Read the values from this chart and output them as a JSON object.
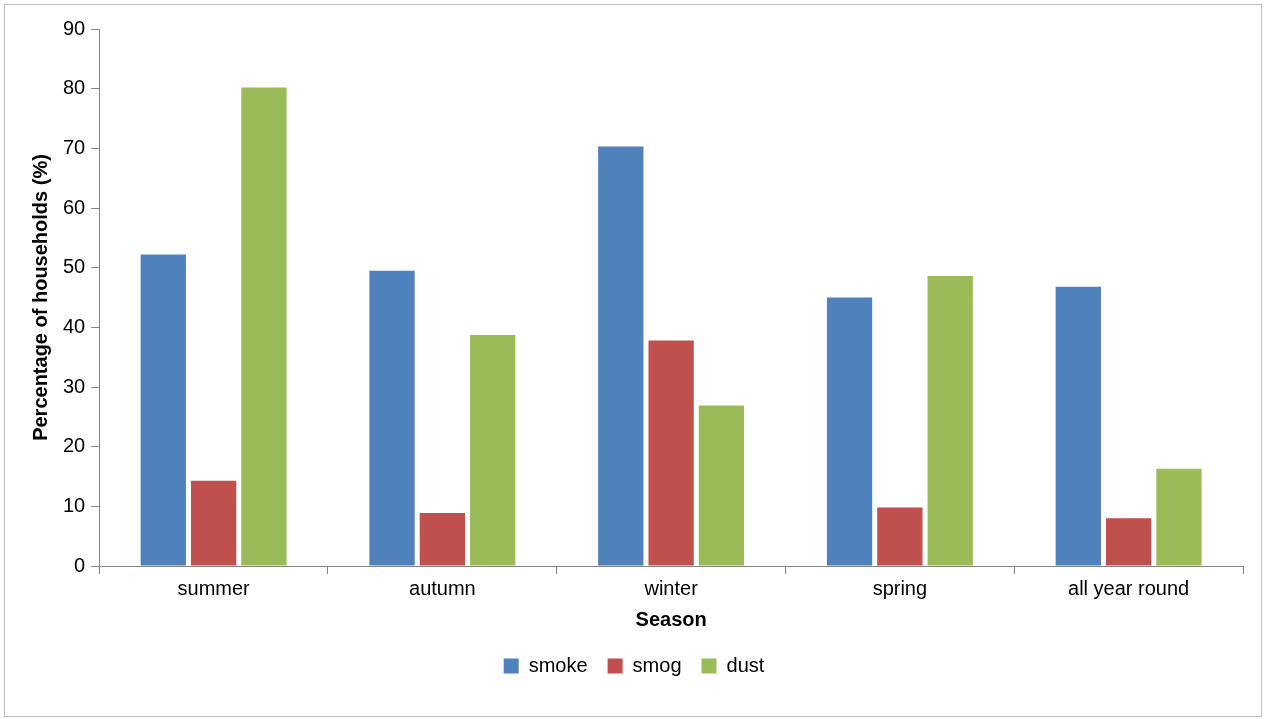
{
  "chart_data": {
    "type": "bar",
    "xlabel": "Season",
    "ylabel": "Percentage of households (%)",
    "categories": [
      "summer",
      "autumn",
      "winter",
      "spring",
      "all year round"
    ],
    "series": [
      {
        "name": "smoke",
        "color": "#4f81bd",
        "values": [
          52.2,
          49.5,
          70.3,
          45.0,
          46.8
        ]
      },
      {
        "name": "smog",
        "color": "#c0504d",
        "values": [
          14.3,
          8.9,
          37.8,
          9.8,
          8.0
        ]
      },
      {
        "name": "dust",
        "color": "#9bbb59",
        "values": [
          80.2,
          38.7,
          26.9,
          48.6,
          16.3
        ]
      }
    ],
    "ylim": [
      0,
      90
    ],
    "yticks": [
      0,
      10,
      20,
      30,
      40,
      50,
      60,
      70,
      80,
      90
    ],
    "grid": false,
    "legend": "bottom"
  }
}
